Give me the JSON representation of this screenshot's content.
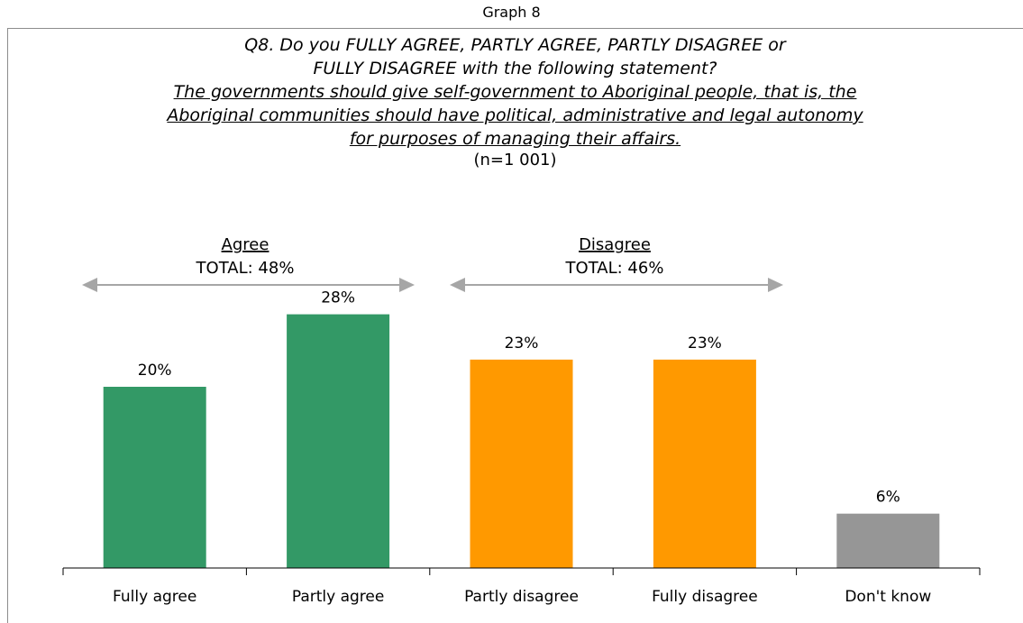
{
  "graph_label": "Graph 8",
  "question": {
    "line1": "Q8. Do you FULLY AGREE, PARTLY AGREE, PARTLY DISAGREE or",
    "line2": "FULLY DISAGREE with the following statement?",
    "statement_line1": "The governments should give self-government to Aboriginal people, that is, the",
    "statement_line2": "Aboriginal communities should have political, administrative and legal autonomy",
    "statement_line3": "for purposes of managing their affairs.",
    "sample": "(n=1 001)"
  },
  "groups": [
    {
      "label": "Agree",
      "total": "TOTAL: 48%"
    },
    {
      "label": "Disagree",
      "total": "TOTAL: 46%"
    }
  ],
  "chart_data": {
    "type": "bar",
    "categories": [
      "Fully agree",
      "Partly agree",
      "Partly disagree",
      "Fully disagree",
      "Don't know"
    ],
    "values": [
      20,
      28,
      23,
      23,
      6
    ],
    "value_labels": [
      "20%",
      "28%",
      "23%",
      "23%",
      "6%"
    ],
    "colors": [
      "#339966",
      "#339966",
      "#ff9900",
      "#ff9900",
      "#969696"
    ],
    "ylim": [
      0,
      30
    ],
    "grid": false
  },
  "colors": {
    "agree": "#339966",
    "disagree": "#ff9900",
    "dont_know": "#969696",
    "arrow": "#a6a6a6"
  }
}
